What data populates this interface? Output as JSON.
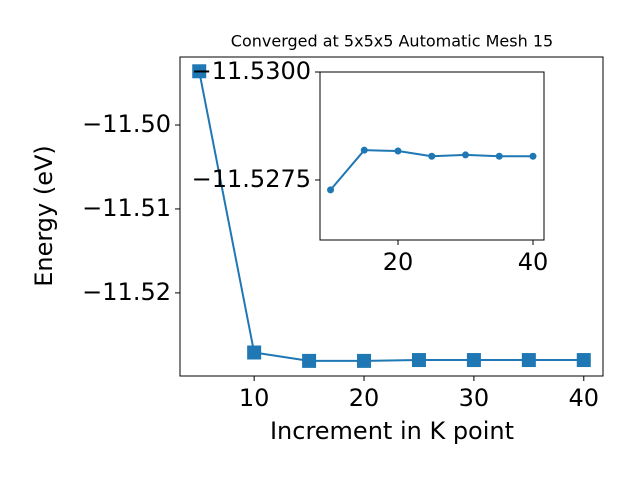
{
  "chart_data": [
    {
      "type": "line",
      "title": "Converged at 5x5x5 Automatic Mesh 15",
      "xlabel": "Increment in K point",
      "ylabel": "Energy (eV)",
      "x": [
        5,
        10,
        15,
        20,
        25,
        30,
        35,
        40
      ],
      "series": [
        {
          "color": "#1f77b4",
          "marker": "square",
          "values": [
            -11.4936,
            -11.5271,
            -11.5281,
            -11.5281,
            -11.528,
            -11.528,
            -11.528,
            -11.528
          ]
        }
      ],
      "xlim": [
        3.25,
        41.75
      ],
      "ylim": [
        -11.5299,
        -11.4919
      ],
      "xticks": [
        10,
        20,
        30,
        40
      ],
      "yticks": [
        {
          "value": -11.5,
          "label": "−11.50"
        },
        {
          "value": -11.51,
          "label": "−11.51"
        },
        {
          "value": -11.52,
          "label": "−11.52"
        }
      ]
    },
    {
      "type": "line",
      "x": [
        10,
        15,
        20,
        25,
        30,
        35,
        40
      ],
      "series": [
        {
          "color": "#1f77b4",
          "marker": "circle",
          "values": [
            -11.52727,
            -11.52819,
            -11.52817,
            -11.52805,
            -11.52808,
            -11.52805,
            -11.52805
          ]
        }
      ],
      "xlim": [
        8.44,
        41.63
      ],
      "ylim": [
        -11.52611,
        -11.53
      ],
      "xticks": [
        20,
        40
      ],
      "yticks": [
        {
          "value": -11.53,
          "label": "−11.5300"
        },
        {
          "value": -11.5275,
          "label": "−11.5275"
        }
      ]
    }
  ]
}
